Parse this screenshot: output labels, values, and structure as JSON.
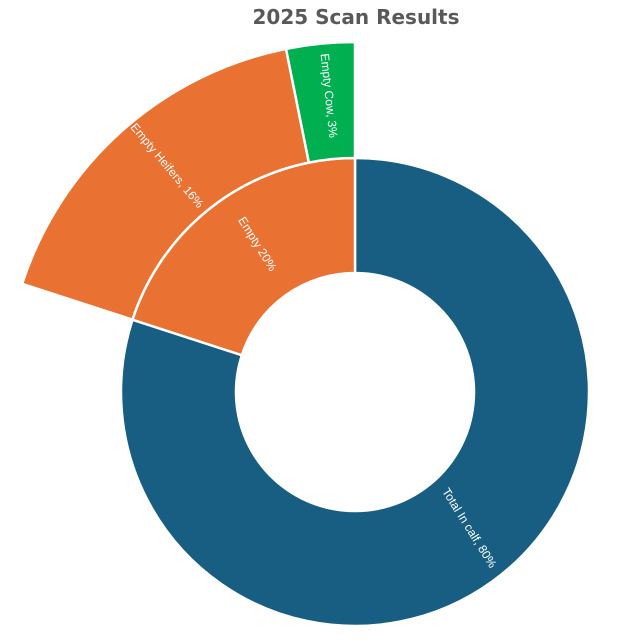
{
  "chart_data": {
    "type": "sunburst",
    "title": "2025 Scan Results",
    "inner_ring": [
      {
        "label": "Total In calf, 80%",
        "name": "Total In calf",
        "value": 80,
        "color": "#175E82"
      },
      {
        "label": "Empty 20%",
        "name": "Empty",
        "value": 20,
        "color": "#E97132"
      }
    ],
    "outer_ring": [
      {
        "label": "Empty Heifers, 16%",
        "name": "Empty Heifers",
        "value": 16,
        "parent": "Empty",
        "color": "#E97132"
      },
      {
        "label": "Empty Cow, 3%",
        "name": "Empty Cow",
        "value": 3,
        "parent": "Empty",
        "color": "#00B050"
      }
    ],
    "legend": "none"
  },
  "title": "2025 Scan Results",
  "labels": {
    "in_calf": "Total In calf, 80%",
    "empty": "Empty 20%",
    "empty_heifers": "Empty Heifers, 16%",
    "empty_cow": "Empty Cow, 3%"
  },
  "colors": {
    "in_calf": "#175E82",
    "empty": "#E97132",
    "empty_heifers": "#E97132",
    "empty_cow": "#00B050",
    "title": "#595959"
  }
}
